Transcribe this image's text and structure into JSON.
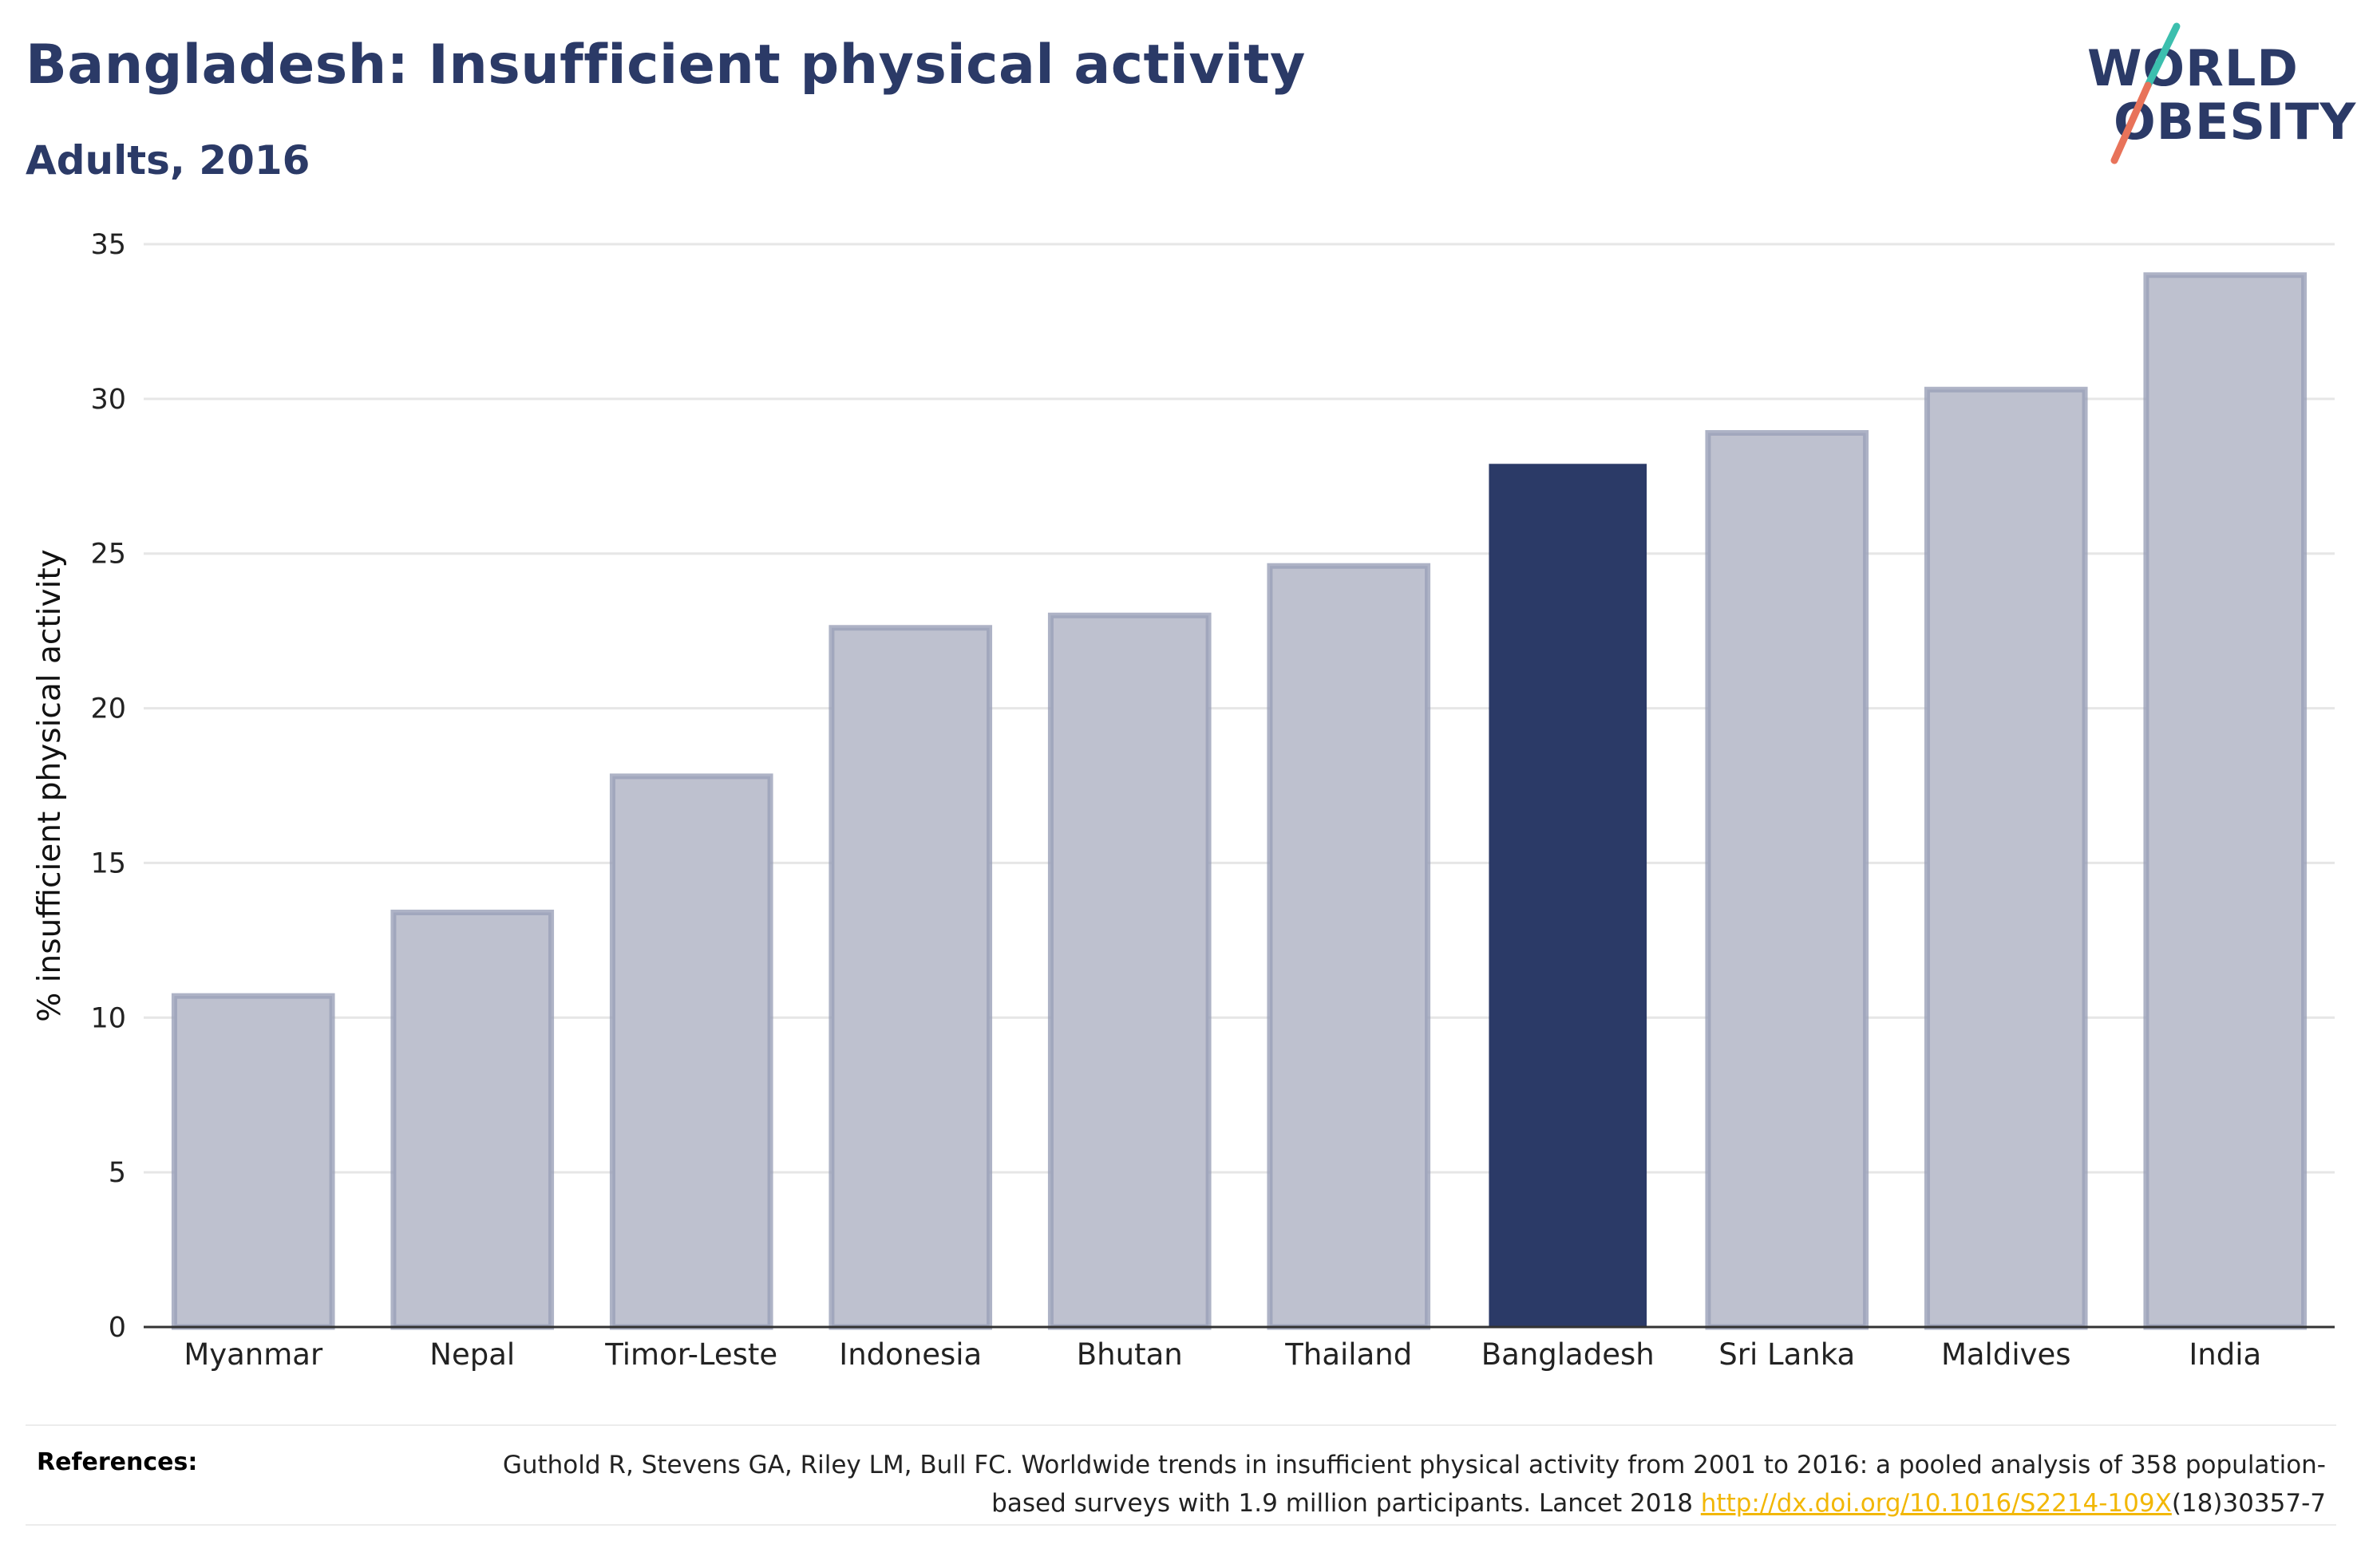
{
  "header": {
    "title": "Bangladesh: Insufficient physical activity",
    "subtitle": "Adults, 2016"
  },
  "logo": {
    "line1": "WORLD",
    "line2": "OBESITY",
    "colors": {
      "text": "#2b3a67",
      "slash_top": "#3cbfae",
      "slash_bottom": "#e8735a"
    }
  },
  "colors": {
    "highlight_bar": "#2b3a67",
    "other_bar_fill": "#bec1cf",
    "other_bar_stroke": "#9aa0b8",
    "gridline": "#e6e6e6",
    "axis": "#333333",
    "link": "#f2b705"
  },
  "chart_data": {
    "type": "bar",
    "title": "Bangladesh: Insufficient physical activity",
    "subtitle": "Adults, 2016",
    "xlabel": "",
    "ylabel": "% insufficient physical activity",
    "ylim": [
      0,
      35
    ],
    "yticks": [
      0,
      5,
      10,
      15,
      20,
      25,
      30,
      35
    ],
    "grid": true,
    "legend": "none",
    "categories": [
      "Myanmar",
      "Nepal",
      "Timor-Leste",
      "Indonesia",
      "Bhutan",
      "Thailand",
      "Bangladesh",
      "Sri Lanka",
      "Maldives",
      "India"
    ],
    "values": [
      10.7,
      13.4,
      17.8,
      22.6,
      23.0,
      24.6,
      27.9,
      28.9,
      30.3,
      34.0
    ],
    "highlight": "Bangladesh"
  },
  "references": {
    "label": "References:",
    "text_before_link": "Guthold R, Stevens GA, Riley LM, Bull FC. Worldwide trends in insufficient physical activity from 2001 to 2016: a pooled analysis of 358 population-based surveys with 1.9 million participants. Lancet 2018 ",
    "link_text": "http://dx.doi.org/10.1016/S2214-109X",
    "text_after_link": "(18)30357-7"
  }
}
